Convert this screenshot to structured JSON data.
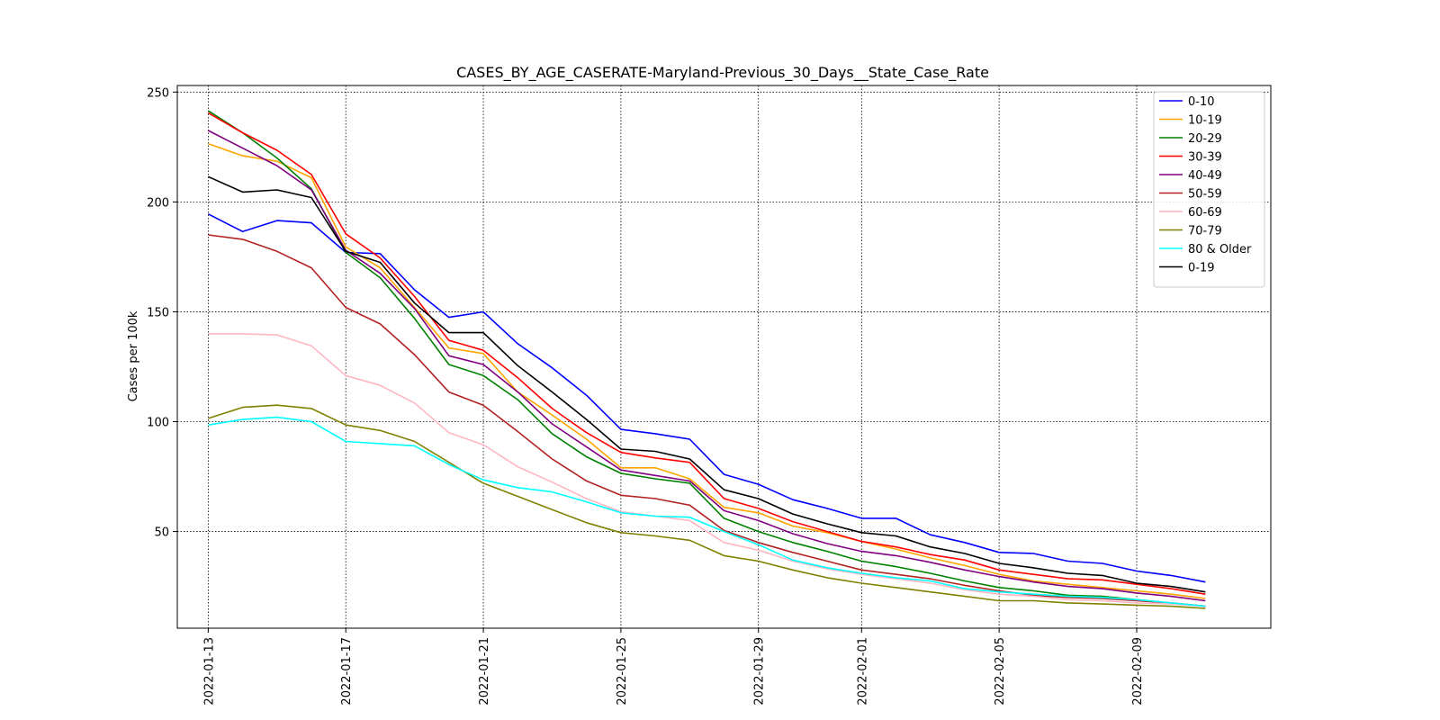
{
  "chart_data": {
    "type": "line",
    "title": "CASES_BY_AGE_CASERATE-Maryland-Previous_30_Days__State_Case_Rate",
    "xlabel": "",
    "ylabel": "Cases per 100k",
    "x_start": "2022-01-13",
    "x": [
      "2022-01-13",
      "2022-01-14",
      "2022-01-15",
      "2022-01-16",
      "2022-01-17",
      "2022-01-18",
      "2022-01-19",
      "2022-01-20",
      "2022-01-21",
      "2022-01-22",
      "2022-01-23",
      "2022-01-24",
      "2022-01-25",
      "2022-01-26",
      "2022-01-27",
      "2022-01-28",
      "2022-01-29",
      "2022-01-30",
      "2022-01-31",
      "2022-02-01",
      "2022-02-02",
      "2022-02-03",
      "2022-02-04",
      "2022-02-05",
      "2022-02-06",
      "2022-02-07",
      "2022-02-08",
      "2022-02-09",
      "2022-02-10",
      "2022-02-11"
    ],
    "xlim": [
      "2022-01-12 02:24",
      "2022-02-12 21:36"
    ],
    "ylim": [
      6,
      253
    ],
    "x_ticks": [
      "2022-01-13",
      "2022-01-17",
      "2022-01-21",
      "2022-01-25",
      "2022-01-29",
      "2022-02-01",
      "2022-02-05",
      "2022-02-09"
    ],
    "y_ticks": [
      50,
      100,
      150,
      200,
      250
    ],
    "grid": true,
    "legend_position": "top-right",
    "series": [
      {
        "name": "0-10",
        "color": "#0000ff",
        "values": [
          194.5,
          186.5,
          191.5,
          190.5,
          177,
          176.5,
          160,
          147.5,
          150,
          135.5,
          124.5,
          112,
          96.5,
          94.5,
          92,
          76,
          71.5,
          64.5,
          60.5,
          56,
          56,
          48.5,
          45,
          40.5,
          40,
          36.5,
          35.5,
          32,
          30,
          27
        ]
      },
      {
        "name": "10-19",
        "color": "#ffa500",
        "values": [
          226.5,
          221,
          218.5,
          211,
          179.5,
          170,
          152,
          133.5,
          131,
          113.5,
          103,
          92,
          79,
          79,
          74,
          61,
          58.5,
          52.5,
          49.5,
          45.5,
          42,
          38,
          34.5,
          30.5,
          27.5,
          26,
          24.5,
          23,
          21.5,
          19.5
        ]
      },
      {
        "name": "20-29",
        "color": "#008000",
        "values": [
          241.5,
          231.5,
          220,
          206,
          177,
          165.5,
          147,
          126,
          121,
          110,
          94.5,
          84,
          76.5,
          74,
          72,
          56,
          50,
          45,
          41,
          36.5,
          34,
          31,
          27.5,
          24.5,
          23,
          21,
          20.5,
          19,
          17.5,
          16
        ]
      },
      {
        "name": "30-39",
        "color": "#ff0000",
        "values": [
          240.5,
          231.5,
          223.5,
          212.5,
          185.5,
          174.5,
          157,
          137,
          132.5,
          120,
          106,
          95,
          86,
          83.5,
          81.5,
          65,
          60.5,
          54.5,
          50,
          45.5,
          43,
          39.5,
          37,
          32.5,
          30.5,
          28.5,
          28,
          26,
          24,
          21.5
        ]
      },
      {
        "name": "40-49",
        "color": "#800080",
        "values": [
          232.5,
          224.5,
          216.5,
          205.5,
          178,
          167.5,
          151.5,
          130,
          126,
          113.5,
          99,
          88.5,
          78,
          75.5,
          73,
          59.5,
          55,
          49,
          44.5,
          41,
          39,
          36,
          32.5,
          29.5,
          27,
          25,
          24,
          22,
          20.5,
          18.5
        ]
      },
      {
        "name": "50-59",
        "color": "#b22222",
        "values": [
          185,
          183,
          177.5,
          170,
          152,
          144.5,
          130.5,
          113.5,
          107.5,
          95.5,
          83,
          73,
          66.5,
          65,
          62,
          50.5,
          45,
          40.5,
          36.5,
          32.5,
          30.5,
          28.5,
          25.5,
          23,
          21,
          20,
          19.5,
          18.5,
          17.5,
          16
        ]
      },
      {
        "name": "60-69",
        "color": "#ffb6c1",
        "values": [
          140,
          140,
          139.5,
          134.5,
          121,
          116.5,
          108.5,
          95,
          89.5,
          79.5,
          72.5,
          65,
          59,
          57,
          55,
          45,
          41.5,
          36.5,
          33,
          30.5,
          28.5,
          26.5,
          23.5,
          21.5,
          20.5,
          19,
          18.5,
          17.5,
          17,
          16
        ]
      },
      {
        "name": "70-79",
        "color": "#808000",
        "values": [
          101.5,
          106.5,
          107.5,
          106,
          98.5,
          96,
          91,
          81.5,
          72,
          66,
          60,
          54,
          49.5,
          48,
          46,
          39,
          36.5,
          32.5,
          29,
          26.5,
          24.5,
          22.5,
          20.5,
          18.5,
          18.5,
          17.5,
          17,
          16.5,
          16,
          15
        ]
      },
      {
        "name": "80 & Older",
        "color": "#00ffff",
        "values": [
          98.5,
          101,
          102,
          100,
          91,
          90,
          89,
          80.5,
          73.5,
          70,
          68,
          63.5,
          58.5,
          57,
          56.5,
          50,
          44,
          37,
          33.5,
          31,
          29,
          27.5,
          24,
          22.5,
          21.5,
          20.5,
          20,
          19,
          17.5,
          16
        ]
      },
      {
        "name": "0-19",
        "color": "#000000",
        "values": [
          211.5,
          204.5,
          205.5,
          202,
          177.5,
          172.5,
          154,
          140.5,
          140.5,
          125.5,
          113.5,
          101,
          87.5,
          86.5,
          83,
          69,
          65,
          58,
          53.5,
          49.5,
          48,
          43,
          40,
          35.5,
          33.5,
          31,
          30,
          26.5,
          25,
          22.5
        ]
      }
    ]
  }
}
